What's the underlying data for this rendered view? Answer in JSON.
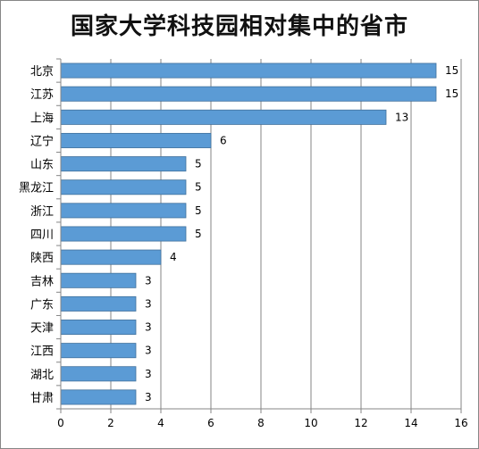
{
  "chart_data": {
    "type": "bar",
    "orientation": "horizontal",
    "title": "国家大学科技园相对集中的省市",
    "categories": [
      "北京",
      "江苏",
      "上海",
      "辽宁",
      "山东",
      "黑龙江",
      "浙江",
      "四川",
      "陕西",
      "吉林",
      "广东",
      "天津",
      "江西",
      "湖北",
      "甘肃"
    ],
    "values": [
      15,
      15,
      13,
      6,
      5,
      5,
      5,
      5,
      4,
      3,
      3,
      3,
      3,
      3,
      3
    ],
    "xlim": [
      0,
      16
    ],
    "xticks": [
      0,
      2,
      4,
      6,
      8,
      10,
      12,
      14,
      16
    ],
    "grid": true,
    "data_labels": true,
    "bar_color": "#5B9BD5",
    "bar_border_color": "#41719C",
    "grid_color": "#868686"
  }
}
